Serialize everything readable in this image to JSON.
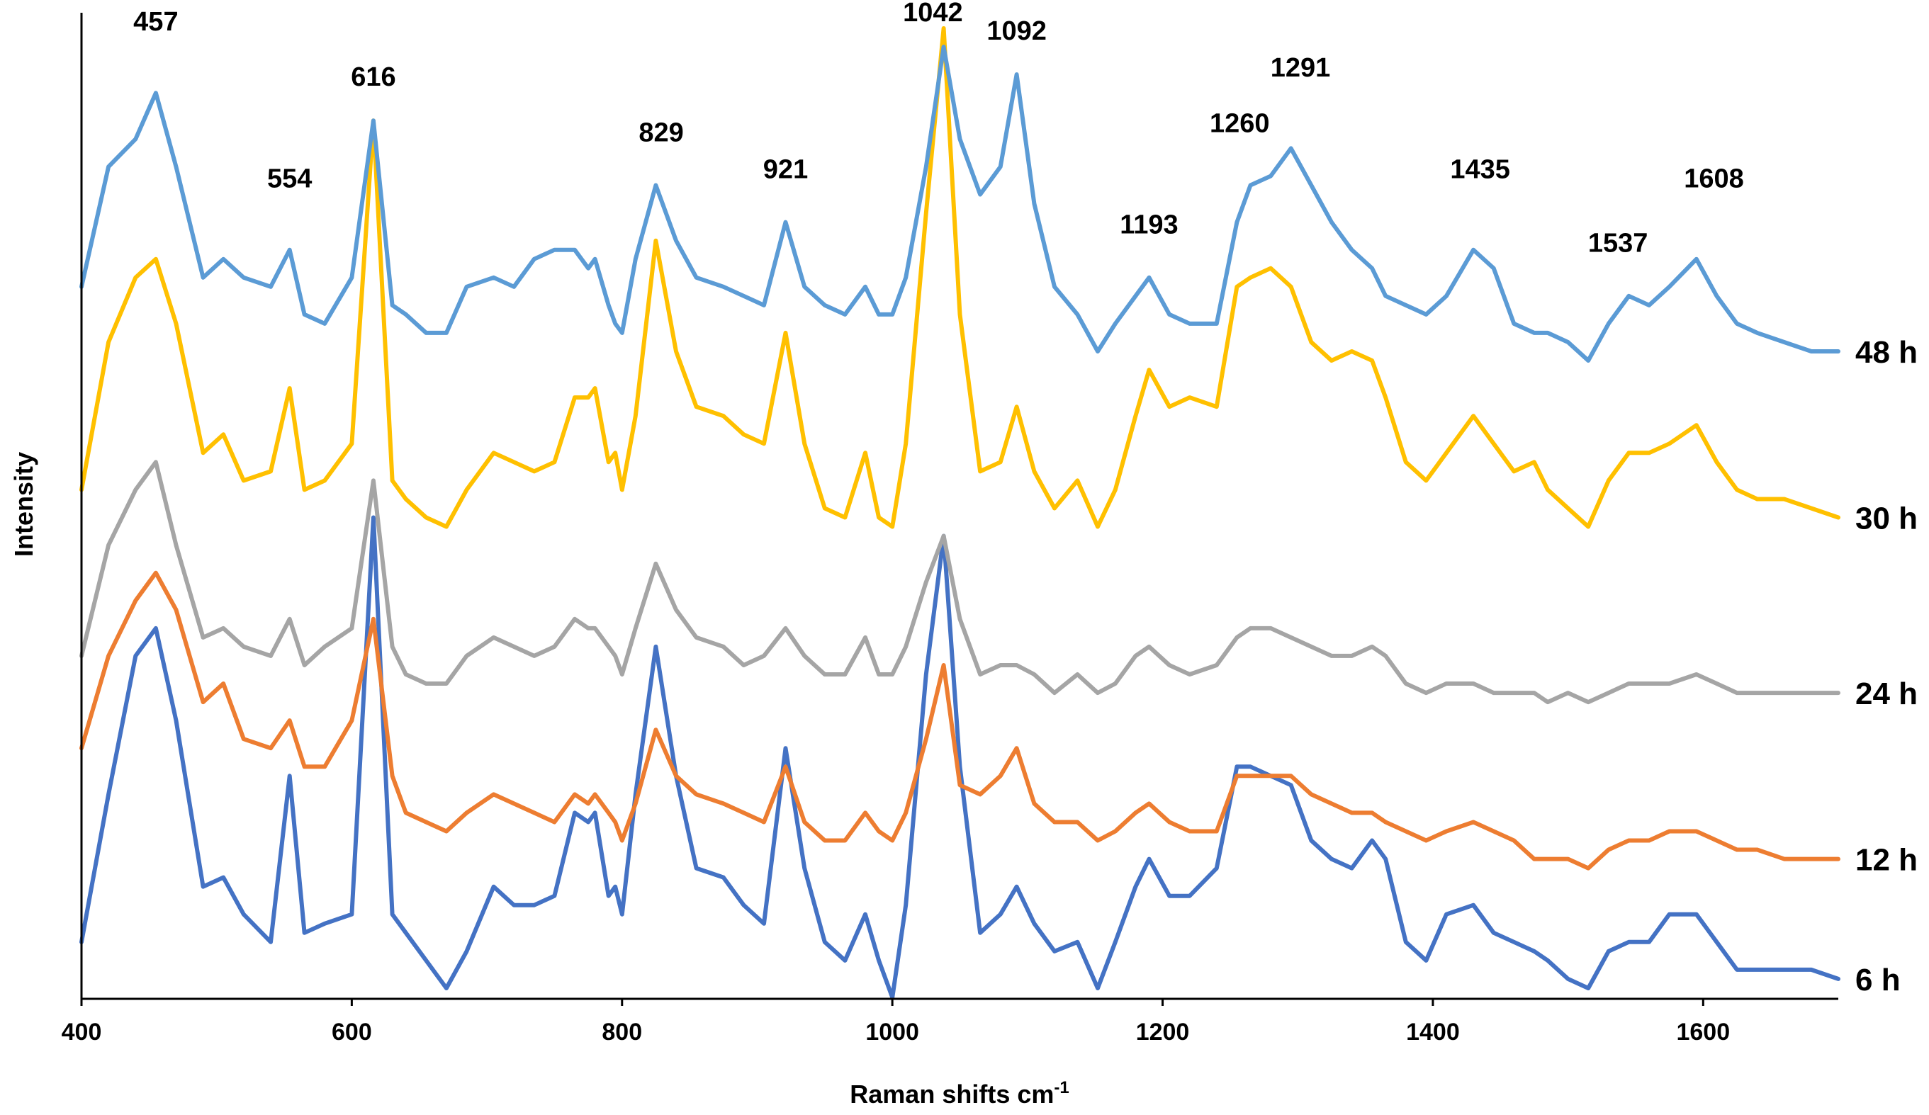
{
  "chart_data": {
    "type": "line",
    "title": "",
    "xlabel": "Raman shifts cm",
    "xlabel_superscript": "-1",
    "ylabel": "Intensity",
    "xlim": [
      400,
      1700
    ],
    "xticks": [
      "400",
      "600",
      "800",
      "1000",
      "1200",
      "1400",
      "1600"
    ],
    "grid": false,
    "legend": "inline-right",
    "peak_labels": [
      {
        "text": "457",
        "x": 455,
        "y": 1.04
      },
      {
        "text": "554",
        "x": 554,
        "y": 0.87
      },
      {
        "text": "616",
        "x": 616,
        "y": 0.98
      },
      {
        "text": "829",
        "x": 829,
        "y": 0.92
      },
      {
        "text": "921",
        "x": 921,
        "y": 0.88
      },
      {
        "text": "1042",
        "x": 1030,
        "y": 1.05
      },
      {
        "text": "1092",
        "x": 1092,
        "y": 1.03
      },
      {
        "text": "1193",
        "x": 1190,
        "y": 0.82
      },
      {
        "text": "1260",
        "x": 1257,
        "y": 0.93
      },
      {
        "text": "1291",
        "x": 1302,
        "y": 0.99
      },
      {
        "text": "1435",
        "x": 1435,
        "y": 0.88
      },
      {
        "text": "1537",
        "x": 1537,
        "y": 0.8
      },
      {
        "text": "1608",
        "x": 1608,
        "y": 0.87
      }
    ],
    "series": [
      {
        "name": "6 h",
        "color": "#4472C4",
        "x": [
          400,
          420,
          440,
          455,
          470,
          490,
          505,
          520,
          540,
          554,
          565,
          580,
          600,
          616,
          630,
          640,
          655,
          670,
          685,
          705,
          720,
          735,
          750,
          765,
          775,
          780,
          790,
          795,
          800,
          810,
          825,
          840,
          855,
          875,
          890,
          905,
          921,
          935,
          950,
          965,
          980,
          990,
          1000,
          1010,
          1025,
          1038,
          1050,
          1065,
          1080,
          1092,
          1105,
          1120,
          1137,
          1152,
          1165,
          1180,
          1190,
          1205,
          1220,
          1240,
          1255,
          1265,
          1280,
          1295,
          1310,
          1325,
          1340,
          1355,
          1365,
          1380,
          1395,
          1410,
          1430,
          1445,
          1460,
          1475,
          1485,
          1500,
          1515,
          1530,
          1545,
          1560,
          1575,
          1595,
          1610,
          1625,
          1640,
          1660,
          1680,
          1700
        ],
        "values": [
          0.06,
          0.22,
          0.37,
          0.4,
          0.3,
          0.12,
          0.13,
          0.09,
          0.06,
          0.24,
          0.07,
          0.08,
          0.09,
          0.52,
          0.09,
          0.07,
          0.04,
          0.01,
          0.05,
          0.12,
          0.1,
          0.1,
          0.11,
          0.2,
          0.19,
          0.2,
          0.11,
          0.12,
          0.09,
          0.22,
          0.38,
          0.24,
          0.14,
          0.13,
          0.1,
          0.08,
          0.27,
          0.14,
          0.06,
          0.04,
          0.09,
          0.04,
          0.0,
          0.1,
          0.35,
          0.5,
          0.25,
          0.07,
          0.09,
          0.12,
          0.08,
          0.05,
          0.06,
          0.01,
          0.06,
          0.12,
          0.15,
          0.11,
          0.11,
          0.14,
          0.25,
          0.25,
          0.24,
          0.23,
          0.17,
          0.15,
          0.14,
          0.17,
          0.15,
          0.06,
          0.04,
          0.09,
          0.1,
          0.07,
          0.06,
          0.05,
          0.04,
          0.02,
          0.01,
          0.05,
          0.06,
          0.06,
          0.09,
          0.09,
          0.06,
          0.03,
          0.03,
          0.03,
          0.03,
          0.02
        ]
      },
      {
        "name": "12 h",
        "color": "#ED7D31",
        "x": [
          400,
          420,
          440,
          455,
          470,
          490,
          505,
          520,
          540,
          554,
          565,
          580,
          600,
          616,
          630,
          640,
          655,
          670,
          685,
          705,
          720,
          735,
          750,
          765,
          775,
          780,
          790,
          795,
          800,
          810,
          825,
          840,
          855,
          875,
          890,
          905,
          921,
          935,
          950,
          965,
          980,
          990,
          1000,
          1010,
          1025,
          1038,
          1050,
          1065,
          1080,
          1092,
          1105,
          1120,
          1137,
          1152,
          1165,
          1180,
          1190,
          1205,
          1220,
          1240,
          1255,
          1265,
          1280,
          1295,
          1310,
          1325,
          1340,
          1355,
          1365,
          1380,
          1395,
          1410,
          1430,
          1445,
          1460,
          1475,
          1485,
          1500,
          1515,
          1530,
          1545,
          1560,
          1575,
          1595,
          1610,
          1625,
          1640,
          1660,
          1680,
          1700
        ],
        "values": [
          0.27,
          0.37,
          0.43,
          0.46,
          0.42,
          0.32,
          0.34,
          0.28,
          0.27,
          0.3,
          0.25,
          0.25,
          0.3,
          0.41,
          0.24,
          0.2,
          0.19,
          0.18,
          0.2,
          0.22,
          0.21,
          0.2,
          0.19,
          0.22,
          0.21,
          0.22,
          0.2,
          0.19,
          0.17,
          0.21,
          0.29,
          0.24,
          0.22,
          0.21,
          0.2,
          0.19,
          0.25,
          0.19,
          0.17,
          0.17,
          0.2,
          0.18,
          0.17,
          0.2,
          0.28,
          0.36,
          0.23,
          0.22,
          0.24,
          0.27,
          0.21,
          0.19,
          0.19,
          0.17,
          0.18,
          0.2,
          0.21,
          0.19,
          0.18,
          0.18,
          0.24,
          0.24,
          0.24,
          0.24,
          0.22,
          0.21,
          0.2,
          0.2,
          0.19,
          0.18,
          0.17,
          0.18,
          0.19,
          0.18,
          0.17,
          0.15,
          0.15,
          0.15,
          0.14,
          0.16,
          0.17,
          0.17,
          0.18,
          0.18,
          0.17,
          0.16,
          0.16,
          0.15,
          0.15,
          0.15
        ]
      },
      {
        "name": "24 h",
        "color": "#A5A5A5",
        "x": [
          400,
          420,
          440,
          455,
          470,
          490,
          505,
          520,
          540,
          554,
          565,
          580,
          600,
          616,
          630,
          640,
          655,
          670,
          685,
          705,
          720,
          735,
          750,
          765,
          775,
          780,
          790,
          795,
          800,
          810,
          825,
          840,
          855,
          875,
          890,
          905,
          921,
          935,
          950,
          965,
          980,
          990,
          1000,
          1010,
          1025,
          1038,
          1050,
          1065,
          1080,
          1092,
          1105,
          1120,
          1137,
          1152,
          1165,
          1180,
          1190,
          1205,
          1220,
          1240,
          1255,
          1265,
          1280,
          1295,
          1310,
          1325,
          1340,
          1355,
          1365,
          1380,
          1395,
          1410,
          1430,
          1445,
          1460,
          1475,
          1485,
          1500,
          1515,
          1530,
          1545,
          1560,
          1575,
          1595,
          1610,
          1625,
          1640,
          1660,
          1680,
          1700
        ],
        "values": [
          0.37,
          0.49,
          0.55,
          0.58,
          0.49,
          0.39,
          0.4,
          0.38,
          0.37,
          0.41,
          0.36,
          0.38,
          0.4,
          0.56,
          0.38,
          0.35,
          0.34,
          0.34,
          0.37,
          0.39,
          0.38,
          0.37,
          0.38,
          0.41,
          0.4,
          0.4,
          0.38,
          0.37,
          0.35,
          0.4,
          0.47,
          0.42,
          0.39,
          0.38,
          0.36,
          0.37,
          0.4,
          0.37,
          0.35,
          0.35,
          0.39,
          0.35,
          0.35,
          0.38,
          0.45,
          0.5,
          0.41,
          0.35,
          0.36,
          0.36,
          0.35,
          0.33,
          0.35,
          0.33,
          0.34,
          0.37,
          0.38,
          0.36,
          0.35,
          0.36,
          0.39,
          0.4,
          0.4,
          0.39,
          0.38,
          0.37,
          0.37,
          0.38,
          0.37,
          0.34,
          0.33,
          0.34,
          0.34,
          0.33,
          0.33,
          0.33,
          0.32,
          0.33,
          0.32,
          0.33,
          0.34,
          0.34,
          0.34,
          0.35,
          0.34,
          0.33,
          0.33,
          0.33,
          0.33,
          0.33
        ]
      },
      {
        "name": "30 h",
        "color": "#FFC000",
        "x": [
          400,
          420,
          440,
          455,
          470,
          490,
          505,
          520,
          540,
          554,
          565,
          580,
          600,
          616,
          630,
          640,
          655,
          670,
          685,
          705,
          720,
          735,
          750,
          765,
          775,
          780,
          790,
          795,
          800,
          810,
          825,
          840,
          855,
          875,
          890,
          905,
          921,
          935,
          950,
          965,
          980,
          990,
          1000,
          1010,
          1025,
          1038,
          1050,
          1065,
          1080,
          1092,
          1105,
          1120,
          1137,
          1152,
          1165,
          1180,
          1190,
          1205,
          1220,
          1240,
          1255,
          1265,
          1280,
          1295,
          1310,
          1325,
          1340,
          1355,
          1365,
          1380,
          1395,
          1410,
          1430,
          1445,
          1460,
          1475,
          1485,
          1500,
          1515,
          1530,
          1545,
          1560,
          1575,
          1595,
          1610,
          1625,
          1640,
          1660,
          1680,
          1700
        ],
        "values": [
          0.55,
          0.71,
          0.78,
          0.8,
          0.73,
          0.59,
          0.61,
          0.56,
          0.57,
          0.66,
          0.55,
          0.56,
          0.6,
          0.95,
          0.56,
          0.54,
          0.52,
          0.51,
          0.55,
          0.59,
          0.58,
          0.57,
          0.58,
          0.65,
          0.65,
          0.66,
          0.58,
          0.59,
          0.55,
          0.63,
          0.82,
          0.7,
          0.64,
          0.63,
          0.61,
          0.6,
          0.72,
          0.6,
          0.53,
          0.52,
          0.59,
          0.52,
          0.51,
          0.6,
          0.85,
          1.05,
          0.74,
          0.57,
          0.58,
          0.64,
          0.57,
          0.53,
          0.56,
          0.51,
          0.55,
          0.63,
          0.68,
          0.64,
          0.65,
          0.64,
          0.77,
          0.78,
          0.79,
          0.77,
          0.71,
          0.69,
          0.7,
          0.69,
          0.65,
          0.58,
          0.56,
          0.59,
          0.63,
          0.6,
          0.57,
          0.58,
          0.55,
          0.53,
          0.51,
          0.56,
          0.59,
          0.59,
          0.6,
          0.62,
          0.58,
          0.55,
          0.54,
          0.54,
          0.53,
          0.52
        ]
      },
      {
        "name": "48 h",
        "color": "#5B9BD5",
        "x": [
          400,
          420,
          440,
          455,
          470,
          490,
          505,
          520,
          540,
          554,
          565,
          580,
          600,
          616,
          630,
          640,
          655,
          670,
          685,
          705,
          720,
          735,
          750,
          765,
          775,
          780,
          790,
          795,
          800,
          810,
          825,
          840,
          855,
          875,
          890,
          905,
          921,
          935,
          950,
          965,
          980,
          990,
          1000,
          1010,
          1025,
          1038,
          1050,
          1065,
          1080,
          1092,
          1105,
          1120,
          1137,
          1152,
          1165,
          1180,
          1190,
          1205,
          1220,
          1240,
          1255,
          1265,
          1280,
          1295,
          1310,
          1325,
          1340,
          1355,
          1365,
          1380,
          1395,
          1410,
          1430,
          1445,
          1460,
          1475,
          1485,
          1500,
          1515,
          1530,
          1545,
          1560,
          1575,
          1595,
          1610,
          1625,
          1640,
          1660,
          1680,
          1700
        ],
        "values": [
          0.77,
          0.9,
          0.93,
          0.98,
          0.9,
          0.78,
          0.8,
          0.78,
          0.77,
          0.81,
          0.74,
          0.73,
          0.78,
          0.95,
          0.75,
          0.74,
          0.72,
          0.72,
          0.77,
          0.78,
          0.77,
          0.8,
          0.81,
          0.81,
          0.79,
          0.8,
          0.75,
          0.73,
          0.72,
          0.8,
          0.88,
          0.82,
          0.78,
          0.77,
          0.76,
          0.75,
          0.84,
          0.77,
          0.75,
          0.74,
          0.77,
          0.74,
          0.74,
          0.78,
          0.9,
          1.03,
          0.93,
          0.87,
          0.9,
          1.0,
          0.86,
          0.77,
          0.74,
          0.7,
          0.73,
          0.76,
          0.78,
          0.74,
          0.73,
          0.73,
          0.84,
          0.88,
          0.89,
          0.92,
          0.88,
          0.84,
          0.81,
          0.79,
          0.76,
          0.75,
          0.74,
          0.76,
          0.81,
          0.79,
          0.73,
          0.72,
          0.72,
          0.71,
          0.69,
          0.73,
          0.76,
          0.75,
          0.77,
          0.8,
          0.76,
          0.73,
          0.72,
          0.71,
          0.7,
          0.7
        ]
      }
    ]
  }
}
